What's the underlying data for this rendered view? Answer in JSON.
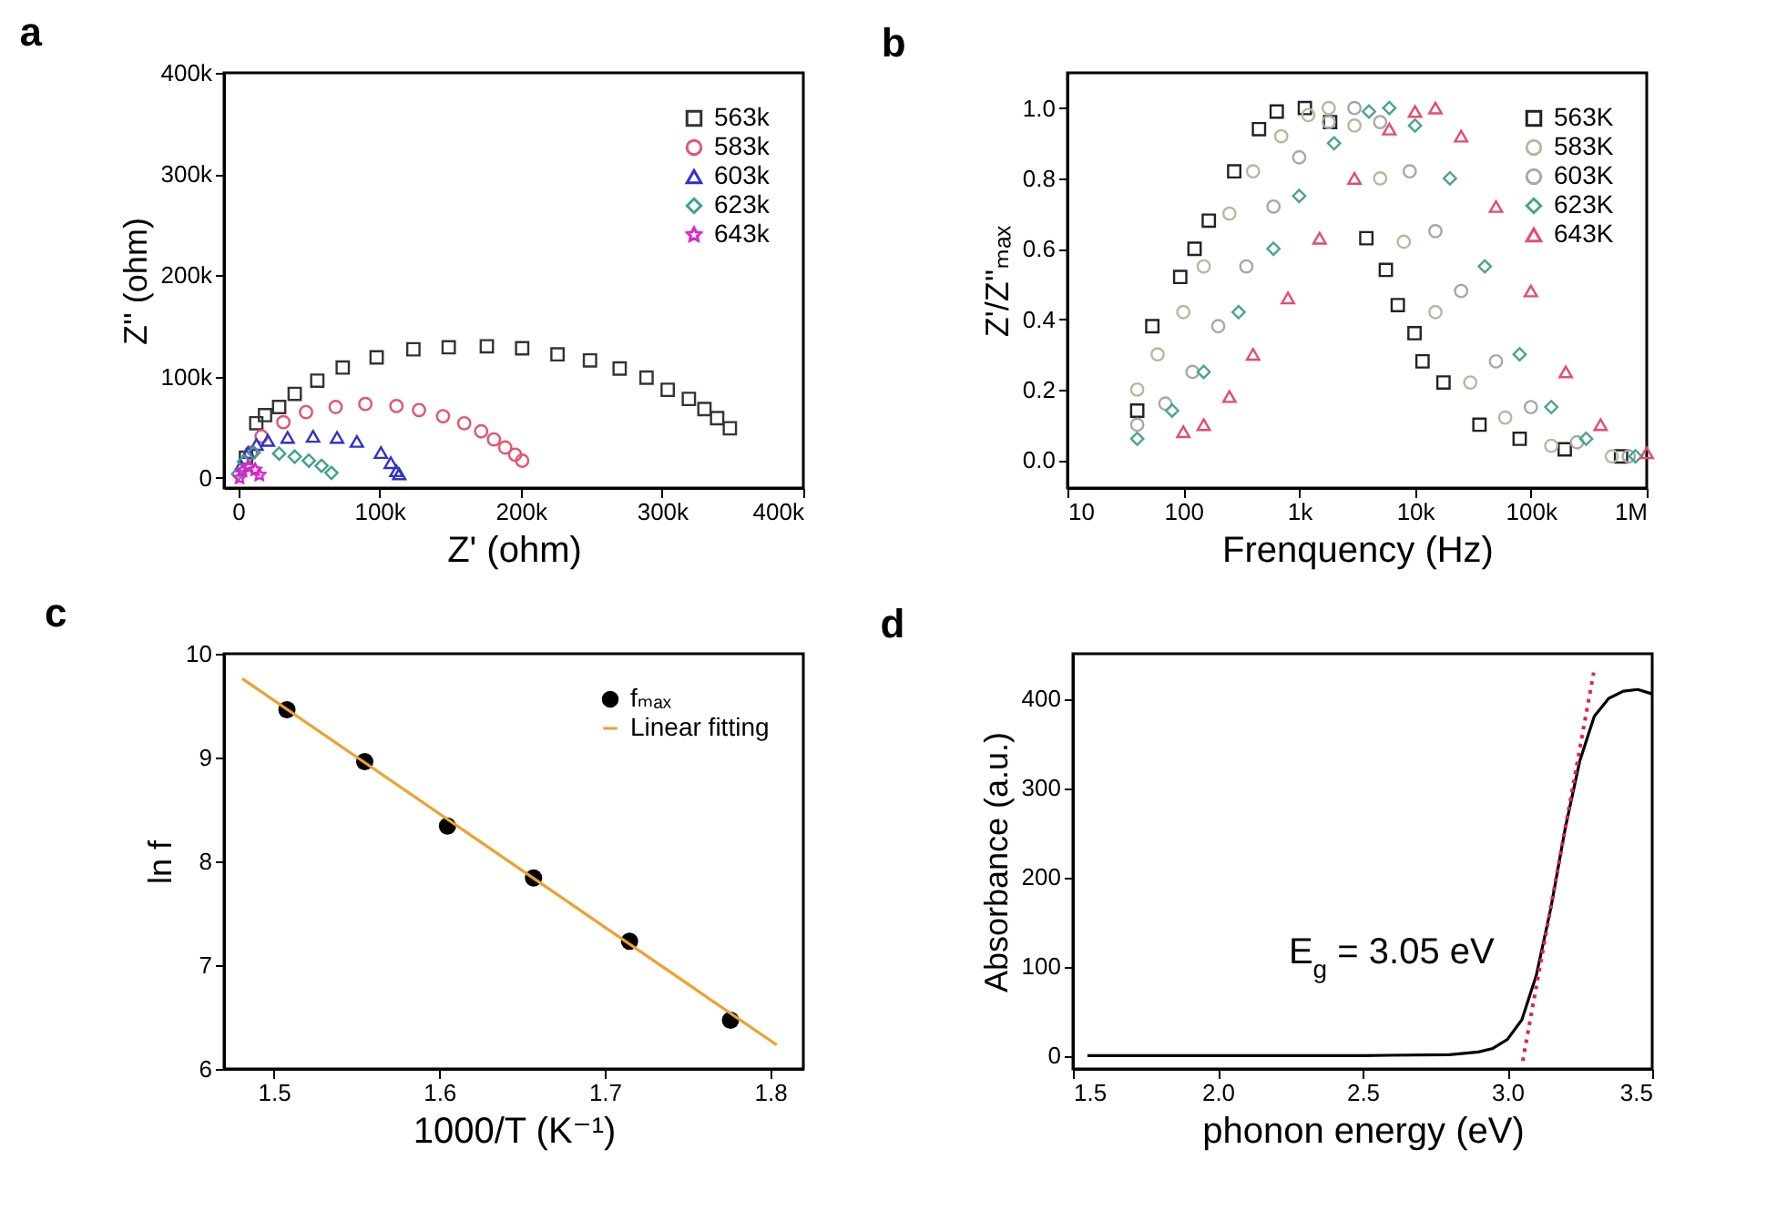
{
  "chart_data": [
    {
      "type": "scatter",
      "title": "a",
      "xlabel": "Z' (ohm)",
      "ylabel": "Z'' (ohm)",
      "xlim": [
        -10000,
        400000
      ],
      "ylim": [
        -10000,
        400000
      ],
      "xticks": [
        {
          "value": 0,
          "label": "0"
        },
        {
          "value": 100000,
          "label": "100k"
        },
        {
          "value": 200000,
          "label": "200k"
        },
        {
          "value": 300000,
          "label": "300k"
        },
        {
          "value": 400000,
          "label": "400k"
        }
      ],
      "yticks": [
        {
          "value": 0,
          "label": "0"
        },
        {
          "value": 100000,
          "label": "100k"
        },
        {
          "value": 200000,
          "label": "200k"
        },
        {
          "value": 300000,
          "label": "300k"
        },
        {
          "value": 400000,
          "label": "400k"
        }
      ],
      "legend": "top right",
      "series": [
        {
          "name": "563k",
          "color": "#333333",
          "marker": "square",
          "x": [
            5500,
            12800,
            19000,
            29000,
            40000,
            56000,
            74000,
            98000,
            124000,
            149000,
            176000,
            201000,
            226000,
            249000,
            270000,
            289000,
            304000,
            319000,
            330000,
            339000,
            348000
          ],
          "values": [
            20000,
            54000,
            62000,
            70000,
            83000,
            96000,
            109000,
            119000,
            127000,
            129000,
            130000,
            128000,
            122000,
            116000,
            108000,
            99000,
            87000,
            78000,
            68000,
            59000,
            49000
          ]
        },
        {
          "name": "583k",
          "color": "#e8536b",
          "marker": "circle",
          "x": [
            9000,
            16500,
            32000,
            48000,
            69000,
            90000,
            112000,
            128000,
            145000,
            160000,
            172000,
            181000,
            189000,
            196000,
            201000
          ],
          "values": [
            25000,
            41000,
            55000,
            65000,
            70000,
            73000,
            71000,
            67000,
            61000,
            54000,
            46000,
            38000,
            30000,
            23000,
            17000
          ]
        },
        {
          "name": "603k",
          "color": "#3030d0",
          "marker": "triangle",
          "x": [
            2000,
            7000,
            13000,
            21000,
            35000,
            53000,
            70000,
            84000,
            101000,
            108000,
            112000,
            114000
          ],
          "values": [
            12000,
            25000,
            33000,
            37000,
            40000,
            41000,
            40000,
            36000,
            25000,
            15000,
            7000,
            4000
          ]
        },
        {
          "name": "623k",
          "color": "#40a090",
          "marker": "diamond",
          "x": [
            0,
            4000,
            11000,
            29000,
            40000,
            50000,
            59000,
            66000
          ],
          "values": [
            4000,
            16000,
            25000,
            24000,
            21000,
            17000,
            12000,
            5000
          ]
        },
        {
          "name": "643k",
          "color": "#e020d0",
          "marker": "star",
          "x": [
            1000,
            3000,
            7000,
            12000,
            15000
          ],
          "values": [
            0,
            7000,
            11000,
            8000,
            3000
          ]
        }
      ]
    },
    {
      "type": "scatter",
      "title": "b",
      "xlabel": "Frenquency (Hz)",
      "ylabel": "Z'/Z''ₘₐₓ",
      "log": "x",
      "xlim": [
        10,
        1000000
      ],
      "ylim": [
        -0.08,
        1.1
      ],
      "xticks": [
        10,
        100,
        {
          "value": 1000,
          "label": "1k"
        },
        {
          "value": 10000,
          "label": "10k"
        },
        {
          "value": 100000,
          "label": "100k"
        },
        {
          "value": 1000000,
          "label": "1M"
        }
      ],
      "yticks": [
        {
          "value": 0,
          "label": "0.0"
        },
        0.2,
        0.4,
        0.6,
        0.8,
        {
          "value": 1,
          "label": "1.0"
        }
      ],
      "legend": "top right",
      "series": [
        {
          "name": "563K",
          "color": "#222222",
          "marker": "square",
          "x": [
            40,
            54,
            94,
            125,
            166,
            275,
            450,
            640,
            1120,
            1850,
            3800,
            5600,
            7100,
            9900,
            11600,
            17600,
            36000,
            80000,
            196000,
            600000
          ],
          "values": [
            0.14,
            0.38,
            0.52,
            0.6,
            0.68,
            0.82,
            0.94,
            0.99,
            1.0,
            0.96,
            0.63,
            0.54,
            0.44,
            0.36,
            0.28,
            0.22,
            0.1,
            0.06,
            0.03,
            0.01
          ]
        },
        {
          "name": "583K",
          "color": "#b8b8a0",
          "marker": "circle",
          "x": [
            40,
            60,
            100,
            150,
            250,
            400,
            700,
            1200,
            1800,
            3000,
            5000,
            8000,
            15000,
            30000,
            60000,
            150000,
            500000
          ],
          "values": [
            0.2,
            0.3,
            0.42,
            0.55,
            0.7,
            0.82,
            0.92,
            0.98,
            1.0,
            0.95,
            0.8,
            0.62,
            0.42,
            0.22,
            0.12,
            0.04,
            0.01
          ]
        },
        {
          "name": "603K",
          "color": "#a8a8a8",
          "marker": "circle",
          "x": [
            40,
            70,
            120,
            200,
            350,
            600,
            1000,
            1800,
            3000,
            5000,
            9000,
            15000,
            25000,
            50000,
            100000,
            250000,
            700000
          ],
          "values": [
            0.1,
            0.16,
            0.25,
            0.38,
            0.55,
            0.72,
            0.86,
            0.96,
            1.0,
            0.96,
            0.82,
            0.65,
            0.48,
            0.28,
            0.15,
            0.05,
            0.01
          ]
        },
        {
          "name": "623K",
          "color": "#4aa58f",
          "marker": "diamond",
          "x": [
            40,
            80,
            150,
            300,
            600,
            1000,
            2000,
            4000,
            6000,
            10000,
            20000,
            40000,
            80000,
            150000,
            300000,
            800000
          ],
          "values": [
            0.06,
            0.14,
            0.25,
            0.42,
            0.6,
            0.75,
            0.9,
            0.99,
            1.0,
            0.95,
            0.8,
            0.55,
            0.3,
            0.15,
            0.06,
            0.01
          ]
        },
        {
          "name": "643K",
          "color": "#e84a6e",
          "marker": "triangle",
          "x": [
            100,
            150,
            250,
            400,
            800,
            1500,
            3000,
            6000,
            10000,
            15000,
            25000,
            50000,
            100000,
            200000,
            400000,
            1000000
          ],
          "values": [
            0.08,
            0.1,
            0.18,
            0.3,
            0.46,
            0.63,
            0.8,
            0.94,
            0.99,
            1.0,
            0.92,
            0.72,
            0.48,
            0.25,
            0.1,
            0.02
          ]
        }
      ]
    },
    {
      "type": "scatter",
      "title": "c",
      "xlabel": "1000/T (K⁻¹)",
      "ylabel": "ln f",
      "xlim": [
        1.47,
        1.82
      ],
      "ylim": [
        6,
        10
      ],
      "xticks": [
        1.5,
        1.6,
        1.7,
        1.8
      ],
      "yticks": [
        6,
        7,
        8,
        9,
        10
      ],
      "legend": "top right",
      "series": [
        {
          "name": "fₘₐₓ",
          "color": "#000000",
          "marker": "circle",
          "x": [
            1.508,
            1.555,
            1.605,
            1.657,
            1.715,
            1.776
          ],
          "values": [
            9.46,
            8.96,
            8.34,
            7.84,
            7.23,
            6.47
          ]
        },
        {
          "name": "Linear fitting",
          "type": "line",
          "color": "#f0a030",
          "x": [
            1.481,
            1.804
          ],
          "values": [
            9.76,
            6.23
          ]
        }
      ]
    },
    {
      "type": "line",
      "title": "d",
      "xlabel": "phonon energy (eV)",
      "ylabel": "Absorbance (a.u.)",
      "xlim": [
        1.5,
        3.5
      ],
      "ylim": [
        -15,
        450
      ],
      "xticks": [
        1.5,
        {
          "value": 2,
          "label": "2.0"
        },
        2.5,
        {
          "value": 3,
          "label": "3.0"
        },
        3.5
      ],
      "yticks": [
        0,
        100,
        200,
        300,
        400
      ],
      "annotations": [
        "E$_{g}$ = 3.05 eV"
      ],
      "series": [
        {
          "color": "#000000",
          "x": [
            1.55,
            2.5,
            2.8,
            2.9,
            2.95,
            3.0,
            3.05,
            3.1,
            3.15,
            3.2,
            3.25,
            3.3,
            3.35,
            3.4,
            3.45,
            3.5
          ],
          "values": [
            0,
            0,
            1,
            4,
            8,
            18,
            40,
            90,
            165,
            255,
            330,
            380,
            400,
            408,
            410,
            405
          ]
        },
        {
          "color": "#e8204a",
          "line_style": "dotted",
          "x": [
            3.053,
            3.298
          ],
          "values": [
            -6,
            429
          ]
        }
      ]
    }
  ]
}
